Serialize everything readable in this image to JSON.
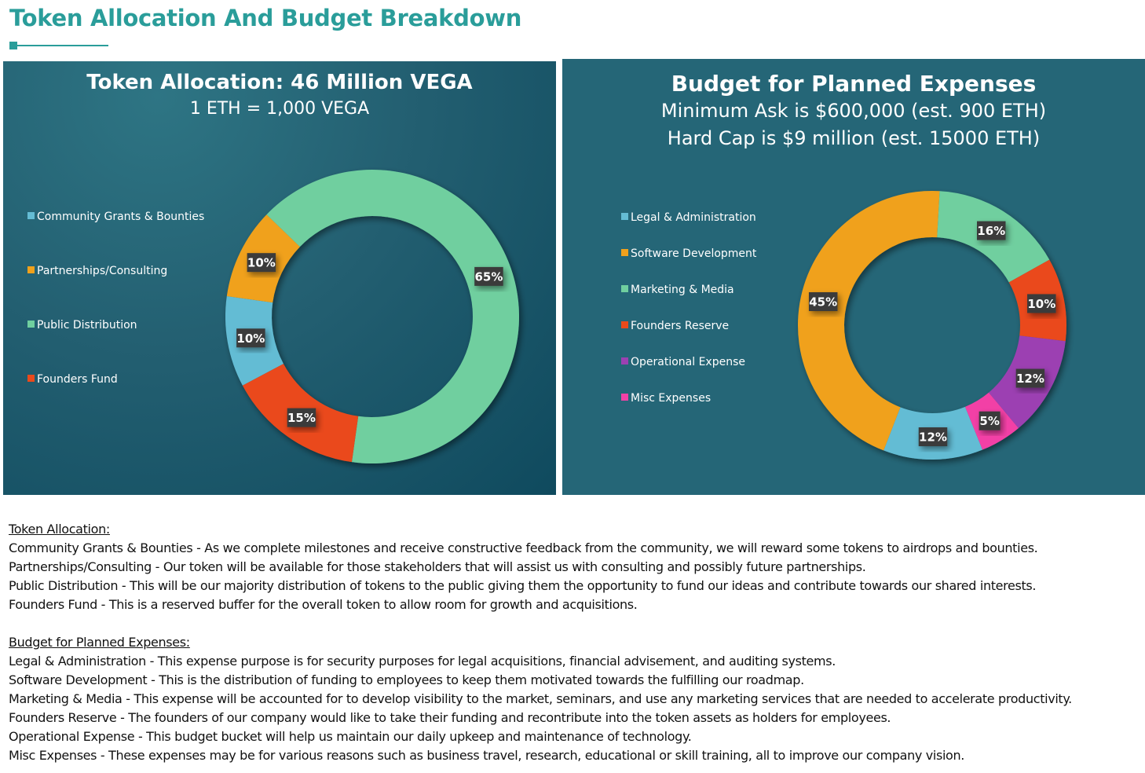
{
  "page_title": "Token Allocation And Budget Breakdown",
  "colors": {
    "title_teal": "#2a9d9a",
    "panel_bg": "#256677",
    "blue": "#64bcd4",
    "orange": "#f0a11c",
    "green": "#70cf9f",
    "red": "#ea4a1b",
    "purple": "#9c41b2",
    "pink": "#f241a6"
  },
  "chart_data": [
    {
      "type": "donut",
      "title": "Token Allocation: 46 Million VEGA",
      "subtitle": "1 ETH = 1,000 VEGA",
      "legend_position": "left",
      "series": [
        {
          "name": "Community Grants & Bounties",
          "value": 10,
          "label": "10%",
          "color": "#64bcd4"
        },
        {
          "name": "Partnerships/Consulting",
          "value": 10,
          "label": "10%",
          "color": "#f0a11c"
        },
        {
          "name": "Public Distribution",
          "value": 65,
          "label": "65%",
          "color": "#70cf9f"
        },
        {
          "name": "Founders Fund",
          "value": 15,
          "label": "15%",
          "color": "#ea4a1b"
        }
      ]
    },
    {
      "type": "donut",
      "title": "Budget for Planned Expenses",
      "subtitle": "Minimum Ask is $600,000 (est. 900 ETH)",
      "subtitle2": "Hard Cap is $9 million (est. 15000 ETH)",
      "legend_position": "left",
      "series": [
        {
          "name": "Legal & Administration",
          "value": 12,
          "label": "12%",
          "color": "#64bcd4"
        },
        {
          "name": "Software Development",
          "value": 45,
          "label": "45%",
          "color": "#f0a11c"
        },
        {
          "name": "Marketing & Media",
          "value": 16,
          "label": "16%",
          "color": "#70cf9f"
        },
        {
          "name": "Founders Reserve",
          "value": 10,
          "label": "10%",
          "color": "#ea4a1b"
        },
        {
          "name": "Operational Expense",
          "value": 12,
          "label": "12%",
          "color": "#9c41b2"
        },
        {
          "name": "Misc Expenses",
          "value": 5,
          "label": "5%",
          "color": "#f241a6"
        }
      ]
    }
  ],
  "descriptions": {
    "token_heading": "Token Allocation:",
    "token_lines": [
      "Community Grants & Bounties - As we complete milestones and receive constructive feedback from the community, we will reward some tokens to airdrops and bounties.",
      "Partnerships/Consulting - Our token will be available for those stakeholders that will assist us with consulting and possibly future partnerships.",
      "Public Distribution - This will be our majority distribution of tokens to the public giving them the opportunity to fund our ideas and contribute towards our shared interests.",
      "Founders Fund - This is a reserved buffer for the overall token to allow room for growth and acquisitions."
    ],
    "budget_heading": "Budget for Planned Expenses:",
    "budget_lines": [
      "Legal & Administration - This expense purpose is for security purposes for legal acquisitions, financial advisement, and auditing systems.",
      "Software Development - This is the distribution of funding to employees to keep them motivated towards the fulfilling our roadmap.",
      "Marketing & Media - This expense will be accounted for to develop visibility to the market, seminars, and use any marketing services that are needed to accelerate productivity.",
      "Founders Reserve - The founders of our company would like to take their funding and recontribute into the token assets as holders for employees.",
      "Operational Expense - This budget bucket will help us maintain our daily upkeep and maintenance of technology.",
      "Misc Expenses - These expenses may be for various reasons such as business travel, research, educational or skill training, all to improve our company vision."
    ]
  }
}
